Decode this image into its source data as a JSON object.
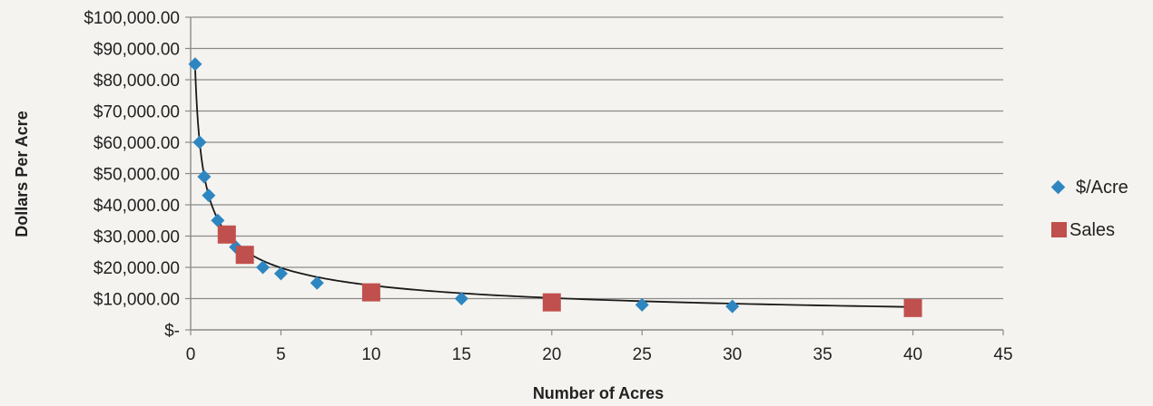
{
  "chart_data": {
    "type": "scatter",
    "title": "",
    "xlabel": "Number of Acres",
    "ylabel": "Dollars Per Acre",
    "xlim": [
      0,
      45
    ],
    "ylim": [
      0,
      100000
    ],
    "x_ticks": [
      0,
      5,
      10,
      15,
      20,
      25,
      30,
      35,
      40,
      45
    ],
    "y_ticks": [
      0,
      10000,
      20000,
      30000,
      40000,
      50000,
      60000,
      70000,
      80000,
      90000,
      100000
    ],
    "y_tick_labels": [
      "$-",
      "$10,000.00",
      "$20,000.00",
      "$30,000.00",
      "$40,000.00",
      "$50,000.00",
      "$60,000.00",
      "$70,000.00",
      "$80,000.00",
      "$90,000.00",
      "$100,000.00"
    ],
    "grid": "horizontal",
    "legend_position": "right",
    "series": [
      {
        "name": "$/Acre",
        "marker": "diamond",
        "color": "#2e86c1",
        "points": [
          {
            "x": 0.25,
            "y": 85000
          },
          {
            "x": 0.5,
            "y": 60000
          },
          {
            "x": 0.75,
            "y": 49000
          },
          {
            "x": 1,
            "y": 43000
          },
          {
            "x": 1.5,
            "y": 35000
          },
          {
            "x": 2.5,
            "y": 26500
          },
          {
            "x": 4,
            "y": 20000
          },
          {
            "x": 5,
            "y": 18000
          },
          {
            "x": 7,
            "y": 15000
          },
          {
            "x": 15,
            "y": 10000
          },
          {
            "x": 25,
            "y": 8000
          },
          {
            "x": 30,
            "y": 7500
          }
        ]
      },
      {
        "name": "Sales",
        "marker": "square",
        "color": "#c0504d",
        "points": [
          {
            "x": 2,
            "y": 30500
          },
          {
            "x": 3,
            "y": 24000
          },
          {
            "x": 10,
            "y": 12000
          },
          {
            "x": 20,
            "y": 8800
          },
          {
            "x": 40,
            "y": 7000
          }
        ]
      }
    ],
    "trendline": {
      "type": "power",
      "color": "#1a1a1a",
      "x_range": [
        0.25,
        40
      ],
      "coefficient": 43000,
      "exponent": -0.48
    }
  }
}
